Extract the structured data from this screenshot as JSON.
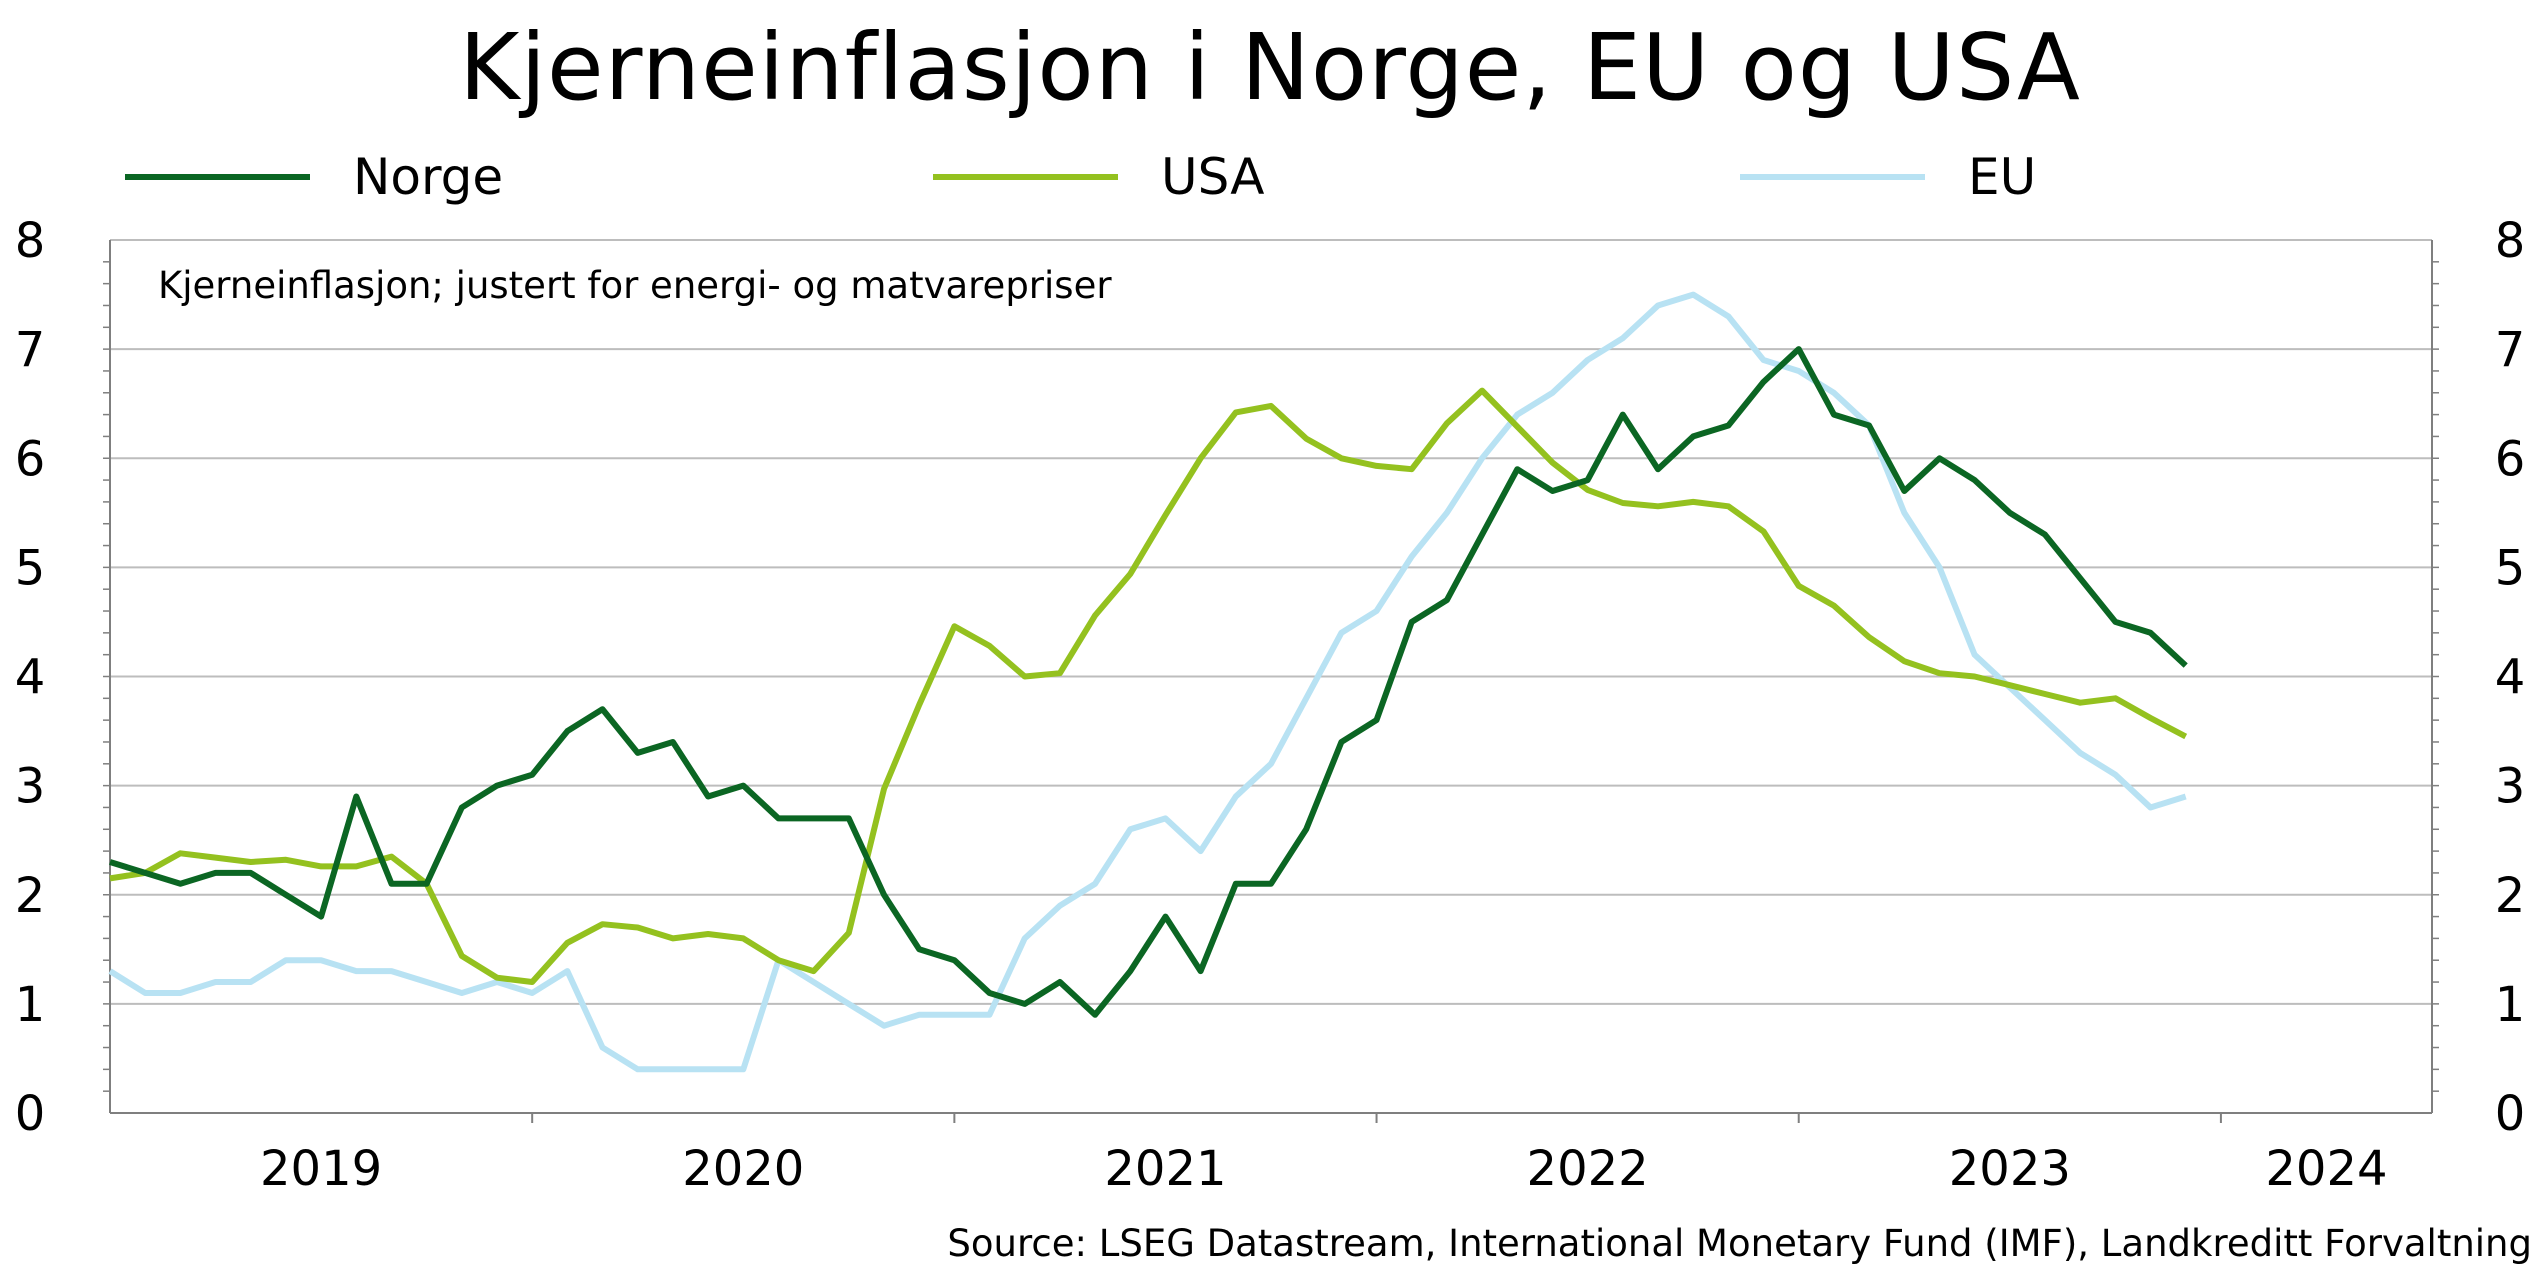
{
  "chart_data": {
    "type": "line",
    "title": "Kjerneinflasjon i Norge, EU og USA",
    "subtitle": "Kjerneinflasjon; justert for energi- og matvarepriser",
    "source": "Source: LSEG Datastream, International Monetary Fund (IMF), Landkreditt Forvaltning",
    "x_start": "2019-01",
    "x_end": "2024-07",
    "x_tick_labels": [
      "2019",
      "2020",
      "2021",
      "2022",
      "2023",
      "2024"
    ],
    "ylim": [
      0,
      8
    ],
    "y_ticks": [
      0,
      1,
      2,
      3,
      4,
      5,
      6,
      7,
      8
    ],
    "grid": true,
    "legend_position": "top",
    "series": [
      {
        "name": "Norge",
        "color": "#0b6623",
        "start": "2019-01",
        "values": [
          2.3,
          2.2,
          2.1,
          2.2,
          2.2,
          2.0,
          1.8,
          2.9,
          2.1,
          2.1,
          2.8,
          3.0,
          3.1,
          3.5,
          3.7,
          3.3,
          3.4,
          2.9,
          3.0,
          2.7,
          2.7,
          2.7,
          2.0,
          1.5,
          1.4,
          1.1,
          1.0,
          1.2,
          0.9,
          1.3,
          1.8,
          1.3,
          2.1,
          2.1,
          2.6,
          3.4,
          3.6,
          4.5,
          4.7,
          5.3,
          5.9,
          5.7,
          5.8,
          6.4,
          5.9,
          6.2,
          6.3,
          6.7,
          7.0,
          6.4,
          6.3,
          5.7,
          6.0,
          5.8,
          5.5,
          5.3,
          4.9,
          4.5,
          4.4,
          4.1
        ]
      },
      {
        "name": "USA",
        "color": "#94c11f",
        "start": "2019-01",
        "values": [
          2.15,
          2.2,
          2.38,
          2.34,
          2.3,
          2.32,
          2.26,
          2.26,
          2.35,
          2.1,
          1.44,
          1.24,
          1.2,
          1.56,
          1.73,
          1.7,
          1.6,
          1.64,
          1.6,
          1.4,
          1.3,
          1.65,
          2.97,
          3.74,
          4.46,
          4.28,
          4.0,
          4.03,
          4.56,
          4.94,
          5.48,
          6.0,
          6.42,
          6.48,
          6.18,
          6.0,
          5.93,
          5.9,
          6.32,
          6.62,
          6.29,
          5.96,
          5.71,
          5.59,
          5.56,
          5.6,
          5.56,
          5.33,
          4.83,
          4.65,
          4.36,
          4.14,
          4.03,
          4.0,
          3.92,
          3.84,
          3.76,
          3.8,
          3.62,
          3.45
        ]
      },
      {
        "name": "EU",
        "color": "#b8e2f3",
        "start": "2019-01",
        "values": [
          1.3,
          1.1,
          1.1,
          1.2,
          1.2,
          1.4,
          1.4,
          1.3,
          1.3,
          1.2,
          1.1,
          1.2,
          1.1,
          1.3,
          0.6,
          0.4,
          0.4,
          0.4,
          0.4,
          1.4,
          1.2,
          1.0,
          0.8,
          0.9,
          0.9,
          0.9,
          1.6,
          1.9,
          2.1,
          2.6,
          2.7,
          2.4,
          2.9,
          3.2,
          3.8,
          4.4,
          4.6,
          5.1,
          5.5,
          6.0,
          6.4,
          6.6,
          6.9,
          7.1,
          7.4,
          7.5,
          7.3,
          6.9,
          6.8,
          6.6,
          6.3,
          5.5,
          5.0,
          4.2,
          3.9,
          3.6,
          3.3,
          3.1,
          2.8,
          2.9
        ]
      }
    ]
  }
}
